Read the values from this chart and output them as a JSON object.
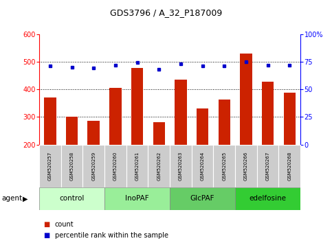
{
  "title": "GDS3796 / A_32_P187009",
  "samples": [
    "GSM520257",
    "GSM520258",
    "GSM520259",
    "GSM520260",
    "GSM520261",
    "GSM520262",
    "GSM520263",
    "GSM520264",
    "GSM520265",
    "GSM520266",
    "GSM520267",
    "GSM520268"
  ],
  "bar_values": [
    370,
    302,
    285,
    405,
    478,
    282,
    435,
    330,
    362,
    530,
    428,
    388
  ],
  "dot_values": [
    71,
    70,
    69,
    72,
    74,
    68,
    73,
    71,
    71,
    75,
    72,
    72
  ],
  "groups": [
    {
      "label": "control",
      "start": 0,
      "end": 3,
      "color": "#ccffcc"
    },
    {
      "label": "InoPAF",
      "start": 3,
      "end": 6,
      "color": "#99ee99"
    },
    {
      "label": "GlcPAF",
      "start": 6,
      "end": 9,
      "color": "#66cc66"
    },
    {
      "label": "edelfosine",
      "start": 9,
      "end": 12,
      "color": "#33cc33"
    }
  ],
  "ylim_left": [
    200,
    600
  ],
  "ylim_right": [
    0,
    100
  ],
  "yticks_left": [
    200,
    300,
    400,
    500,
    600
  ],
  "yticks_right": [
    0,
    25,
    50,
    75,
    100
  ],
  "bar_color": "#cc2200",
  "dot_color": "#0000cc",
  "legend_count_label": "count",
  "legend_pct_label": "percentile rank within the sample",
  "agent_label": "agent",
  "group_colors_light": [
    "#ccffcc",
    "#99ee99",
    "#66cc66",
    "#33cc33"
  ],
  "sample_bg": "#cccccc"
}
